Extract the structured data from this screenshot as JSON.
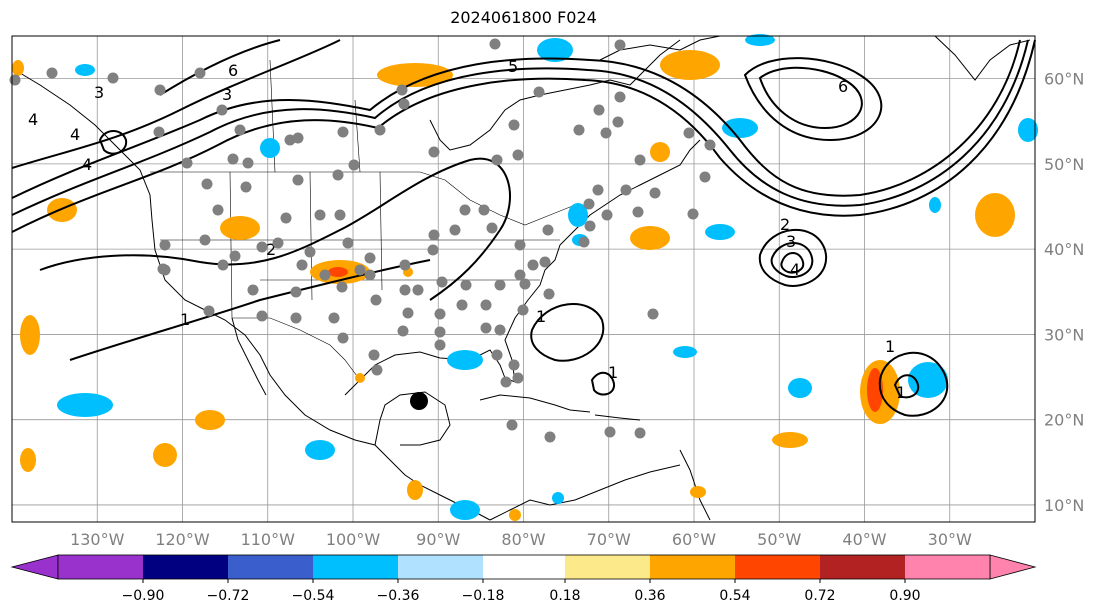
{
  "title": "2024061800 F024",
  "map": {
    "lon_range": [
      -140,
      -20
    ],
    "lat_range": [
      8,
      65
    ],
    "lon_ticks": [
      "130°W",
      "120°W",
      "110°W",
      "100°W",
      "90°W",
      "80°W",
      "70°W",
      "60°W",
      "50°W",
      "40°W",
      "30°W"
    ],
    "lon_tick_values": [
      -130,
      -120,
      -110,
      -100,
      -90,
      -80,
      -70,
      -60,
      -50,
      -40,
      -30
    ],
    "lat_ticks": [
      "10°N",
      "20°N",
      "30°N",
      "40°N",
      "50°N",
      "60°N"
    ],
    "lat_tick_values": [
      10,
      20,
      30,
      40,
      50,
      60
    ],
    "grid": true,
    "colors": {
      "grid": "#999999",
      "axis_label": "#808080",
      "dots": "#808080",
      "storm": "#000000"
    }
  },
  "contour_labels": [
    "4",
    "3",
    "4",
    "4",
    "5",
    "3",
    "6",
    "1",
    "2",
    "1",
    "1",
    "2",
    "3",
    "4",
    "1",
    "1",
    "6"
  ],
  "anomaly_colors": [
    "#ffa500",
    "#ff4500",
    "#00bfff",
    "#b22222"
  ],
  "colorbar": {
    "ticks": [
      "−0.90",
      "−0.72",
      "−0.54",
      "−0.36",
      "−0.18",
      "0.18",
      "0.36",
      "0.54",
      "0.72",
      "0.90"
    ],
    "colors": [
      "#9932cc",
      "#000080",
      "#3a5fcd",
      "#00bfff",
      "#b0e2ff",
      "#ffffff",
      "#fce98a",
      "#ffa500",
      "#ff4500",
      "#b22222",
      "#ff83ac"
    ],
    "under_color": "#9932cc",
    "over_color": "#ff83ac"
  }
}
